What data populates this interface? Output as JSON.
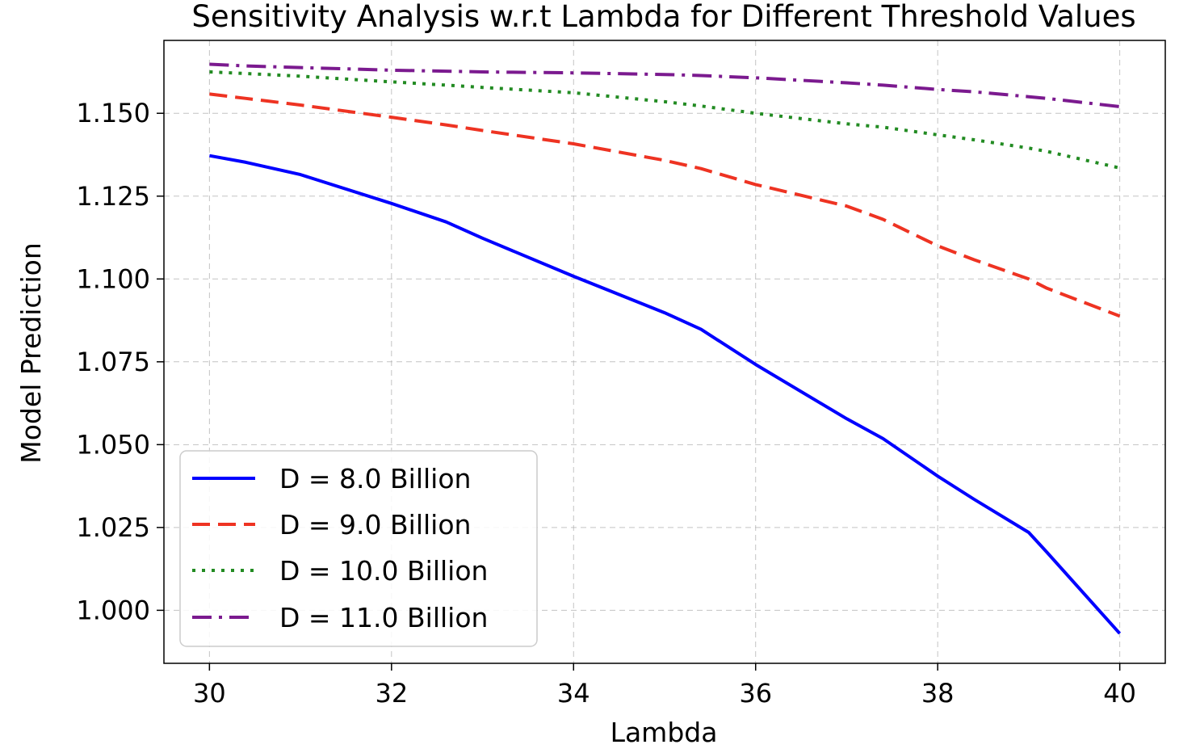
{
  "chart_data": {
    "type": "line",
    "title": "Sensitivity Analysis w.r.t Lambda for Different Threshold Values",
    "xlabel": "Lambda",
    "ylabel": "Model Prediction",
    "xlim": [
      29.5,
      40.5
    ],
    "ylim": [
      0.984,
      1.172
    ],
    "grid": true,
    "legend_position": "lower-left",
    "x_ticks": [
      30,
      32,
      34,
      36,
      38,
      40
    ],
    "x_tick_labels": [
      "30",
      "32",
      "34",
      "36",
      "38",
      "40"
    ],
    "y_ticks": [
      1.0,
      1.025,
      1.05,
      1.075,
      1.1,
      1.125,
      1.15
    ],
    "y_tick_labels": [
      "1.000",
      "1.025",
      "1.050",
      "1.075",
      "1.100",
      "1.125",
      "1.150"
    ],
    "x": [
      30,
      30.4,
      31,
      32,
      32.6,
      33,
      34,
      35,
      35.4,
      36,
      37,
      37.4,
      38,
      38.4,
      39,
      39.2,
      40
    ],
    "series": [
      {
        "name": "D = 8.0 Billion",
        "color": "#0000ff",
        "dash": "solid",
        "values": [
          1.1372,
          1.1352,
          1.1315,
          1.1228,
          1.1172,
          1.1123,
          1.1008,
          1.0898,
          1.0848,
          1.0742,
          1.0578,
          1.0518,
          1.0405,
          1.0335,
          1.0235,
          1.0175,
          0.993
        ]
      },
      {
        "name": "D = 9.0 Billion",
        "color": "#ee3322",
        "dash": "dashed",
        "values": [
          1.1558,
          1.1545,
          1.1525,
          1.1488,
          1.1465,
          1.1448,
          1.1408,
          1.1358,
          1.1333,
          1.1285,
          1.122,
          1.118,
          1.11,
          1.1058,
          1.1,
          1.0972,
          1.0888
        ]
      },
      {
        "name": "D = 10.0 Billion",
        "color": "#228b22",
        "dash": "dotted",
        "values": [
          1.1625,
          1.162,
          1.1612,
          1.1595,
          1.1585,
          1.1578,
          1.1562,
          1.1535,
          1.1522,
          1.15,
          1.1468,
          1.1458,
          1.1435,
          1.142,
          1.1395,
          1.1385,
          1.1335
        ]
      },
      {
        "name": "D = 11.0 Billion",
        "color": "#7b1a8f",
        "dash": "dashdot",
        "values": [
          1.1648,
          1.1643,
          1.1638,
          1.163,
          1.1627,
          1.1625,
          1.1622,
          1.1617,
          1.1614,
          1.1607,
          1.1592,
          1.1585,
          1.1572,
          1.1565,
          1.155,
          1.1545,
          1.152
        ]
      }
    ]
  }
}
